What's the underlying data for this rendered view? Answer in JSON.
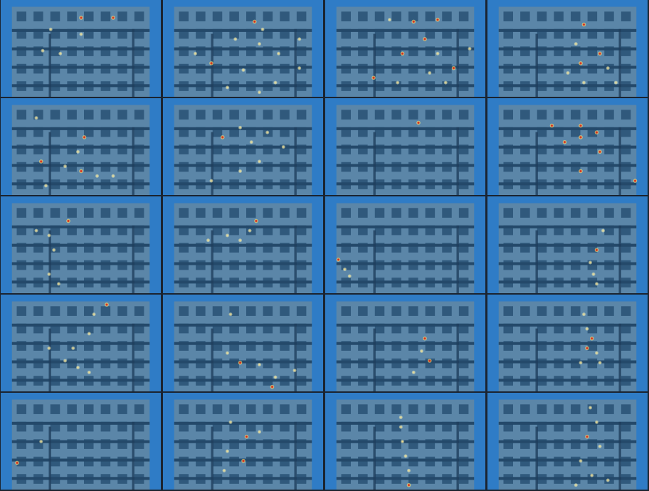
{
  "chart_data": {
    "type": "scatter",
    "tick_labels": false,
    "xlim": [
      0,
      100
    ],
    "ylim": [
      0,
      100
    ],
    "panels": [
      {
        "x": [
          50,
          70,
          31,
          26,
          37,
          50
        ],
        "y": [
          18,
          18,
          30,
          52,
          55,
          35
        ],
        "values": [
          2,
          2,
          1,
          1,
          1,
          1
        ]
      },
      {
        "x": [
          57,
          60,
          62,
          30,
          45,
          20,
          72,
          85,
          50,
          70,
          85,
          40,
          60
        ],
        "y": [
          22,
          45,
          30,
          65,
          40,
          55,
          55,
          40,
          72,
          85,
          70,
          90,
          95
        ],
        "values": [
          2,
          1,
          1,
          2,
          1,
          1,
          1,
          1,
          1,
          1,
          1,
          1,
          1
        ]
      },
      {
        "x": [
          40,
          55,
          70,
          62,
          48,
          70,
          80,
          30,
          45,
          65,
          75,
          90
        ],
        "y": [
          20,
          22,
          20,
          40,
          55,
          55,
          70,
          80,
          85,
          75,
          85,
          50
        ],
        "values": [
          1,
          2,
          2,
          2,
          2,
          1,
          2,
          2,
          1,
          1,
          1,
          1
        ]
      },
      {
        "x": [
          60,
          55,
          70,
          58,
          75,
          50,
          60,
          80
        ],
        "y": [
          25,
          45,
          55,
          65,
          70,
          75,
          85,
          85
        ],
        "values": [
          2,
          1,
          2,
          2,
          1,
          1,
          1,
          1
        ]
      },
      {
        "x": [
          22,
          52,
          25,
          48,
          40,
          50,
          60,
          70,
          28
        ],
        "y": [
          20,
          40,
          65,
          55,
          70,
          75,
          80,
          80,
          90
        ],
        "values": [
          1,
          2,
          2,
          1,
          1,
          2,
          1,
          1,
          1
        ]
      },
      {
        "x": [
          37,
          48,
          55,
          65,
          75,
          60,
          48,
          30
        ],
        "y": [
          40,
          30,
          45,
          35,
          50,
          65,
          75,
          85
        ],
        "values": [
          2,
          1,
          1,
          1,
          1,
          1,
          1,
          1
        ]
      },
      {
        "x": [
          58
        ],
        "y": [
          25
        ],
        "values": [
          2
        ]
      },
      {
        "x": [
          40,
          58,
          68,
          58,
          48,
          70,
          58,
          92
        ],
        "y": [
          28,
          28,
          35,
          40,
          45,
          55,
          75,
          85
        ],
        "values": [
          2,
          2,
          2,
          2,
          2,
          2,
          2,
          2
        ]
      },
      {
        "x": [
          42,
          30,
          33,
          30,
          36,
          22
        ],
        "y": [
          25,
          40,
          55,
          80,
          90,
          35
        ],
        "values": [
          2,
          1,
          1,
          1,
          1,
          1
        ]
      },
      {
        "x": [
          58,
          54,
          40,
          28,
          48
        ],
        "y": [
          25,
          35,
          40,
          45,
          45
        ],
        "values": [
          2,
          1,
          1,
          1,
          1
        ]
      },
      {
        "x": [
          8,
          12,
          15
        ],
        "y": [
          65,
          75,
          82
        ],
        "values": [
          2,
          1,
          1
        ]
      },
      {
        "x": [
          72,
          68,
          64,
          66,
          68
        ],
        "y": [
          35,
          55,
          68,
          80,
          90
        ],
        "values": [
          1,
          2,
          1,
          1,
          1
        ]
      },
      {
        "x": [
          66,
          58,
          55,
          45,
          40,
          48,
          55,
          30
        ],
        "y": [
          10,
          20,
          40,
          55,
          68,
          75,
          80,
          55
        ],
        "values": [
          2,
          1,
          1,
          1,
          1,
          1,
          1,
          1
        ]
      },
      {
        "x": [
          42,
          40,
          48,
          60,
          82,
          70,
          68
        ],
        "y": [
          20,
          60,
          70,
          72,
          78,
          85,
          95
        ],
        "values": [
          1,
          1,
          2,
          1,
          1,
          1,
          2
        ]
      },
      {
        "x": [
          62,
          60,
          65,
          55
        ],
        "y": [
          45,
          58,
          68,
          80
        ],
        "values": [
          2,
          1,
          2,
          1
        ]
      },
      {
        "x": [
          60,
          62,
          65,
          62,
          68,
          58,
          70
        ],
        "y": [
          20,
          35,
          45,
          55,
          60,
          70,
          70
        ],
        "values": [
          1,
          1,
          2,
          2,
          1,
          1,
          1
        ]
      },
      {
        "x": [
          10,
          25
        ],
        "y": [
          72,
          50
        ],
        "values": [
          2,
          1
        ]
      },
      {
        "x": [
          42,
          52,
          40,
          50,
          38,
          60
        ],
        "y": [
          30,
          45,
          60,
          70,
          80,
          40
        ],
        "values": [
          1,
          2,
          1,
          2,
          1,
          1
        ]
      },
      {
        "x": [
          47,
          47,
          48,
          50,
          52,
          52
        ],
        "y": [
          25,
          35,
          50,
          65,
          80,
          95
        ],
        "values": [
          1,
          1,
          1,
          1,
          1,
          2
        ]
      },
      {
        "x": [
          64,
          68,
          62,
          70,
          58,
          65,
          75,
          55
        ],
        "y": [
          15,
          30,
          45,
          55,
          70,
          85,
          90,
          95
        ],
        "values": [
          1,
          1,
          2,
          1,
          1,
          1,
          1,
          1
        ]
      }
    ]
  }
}
